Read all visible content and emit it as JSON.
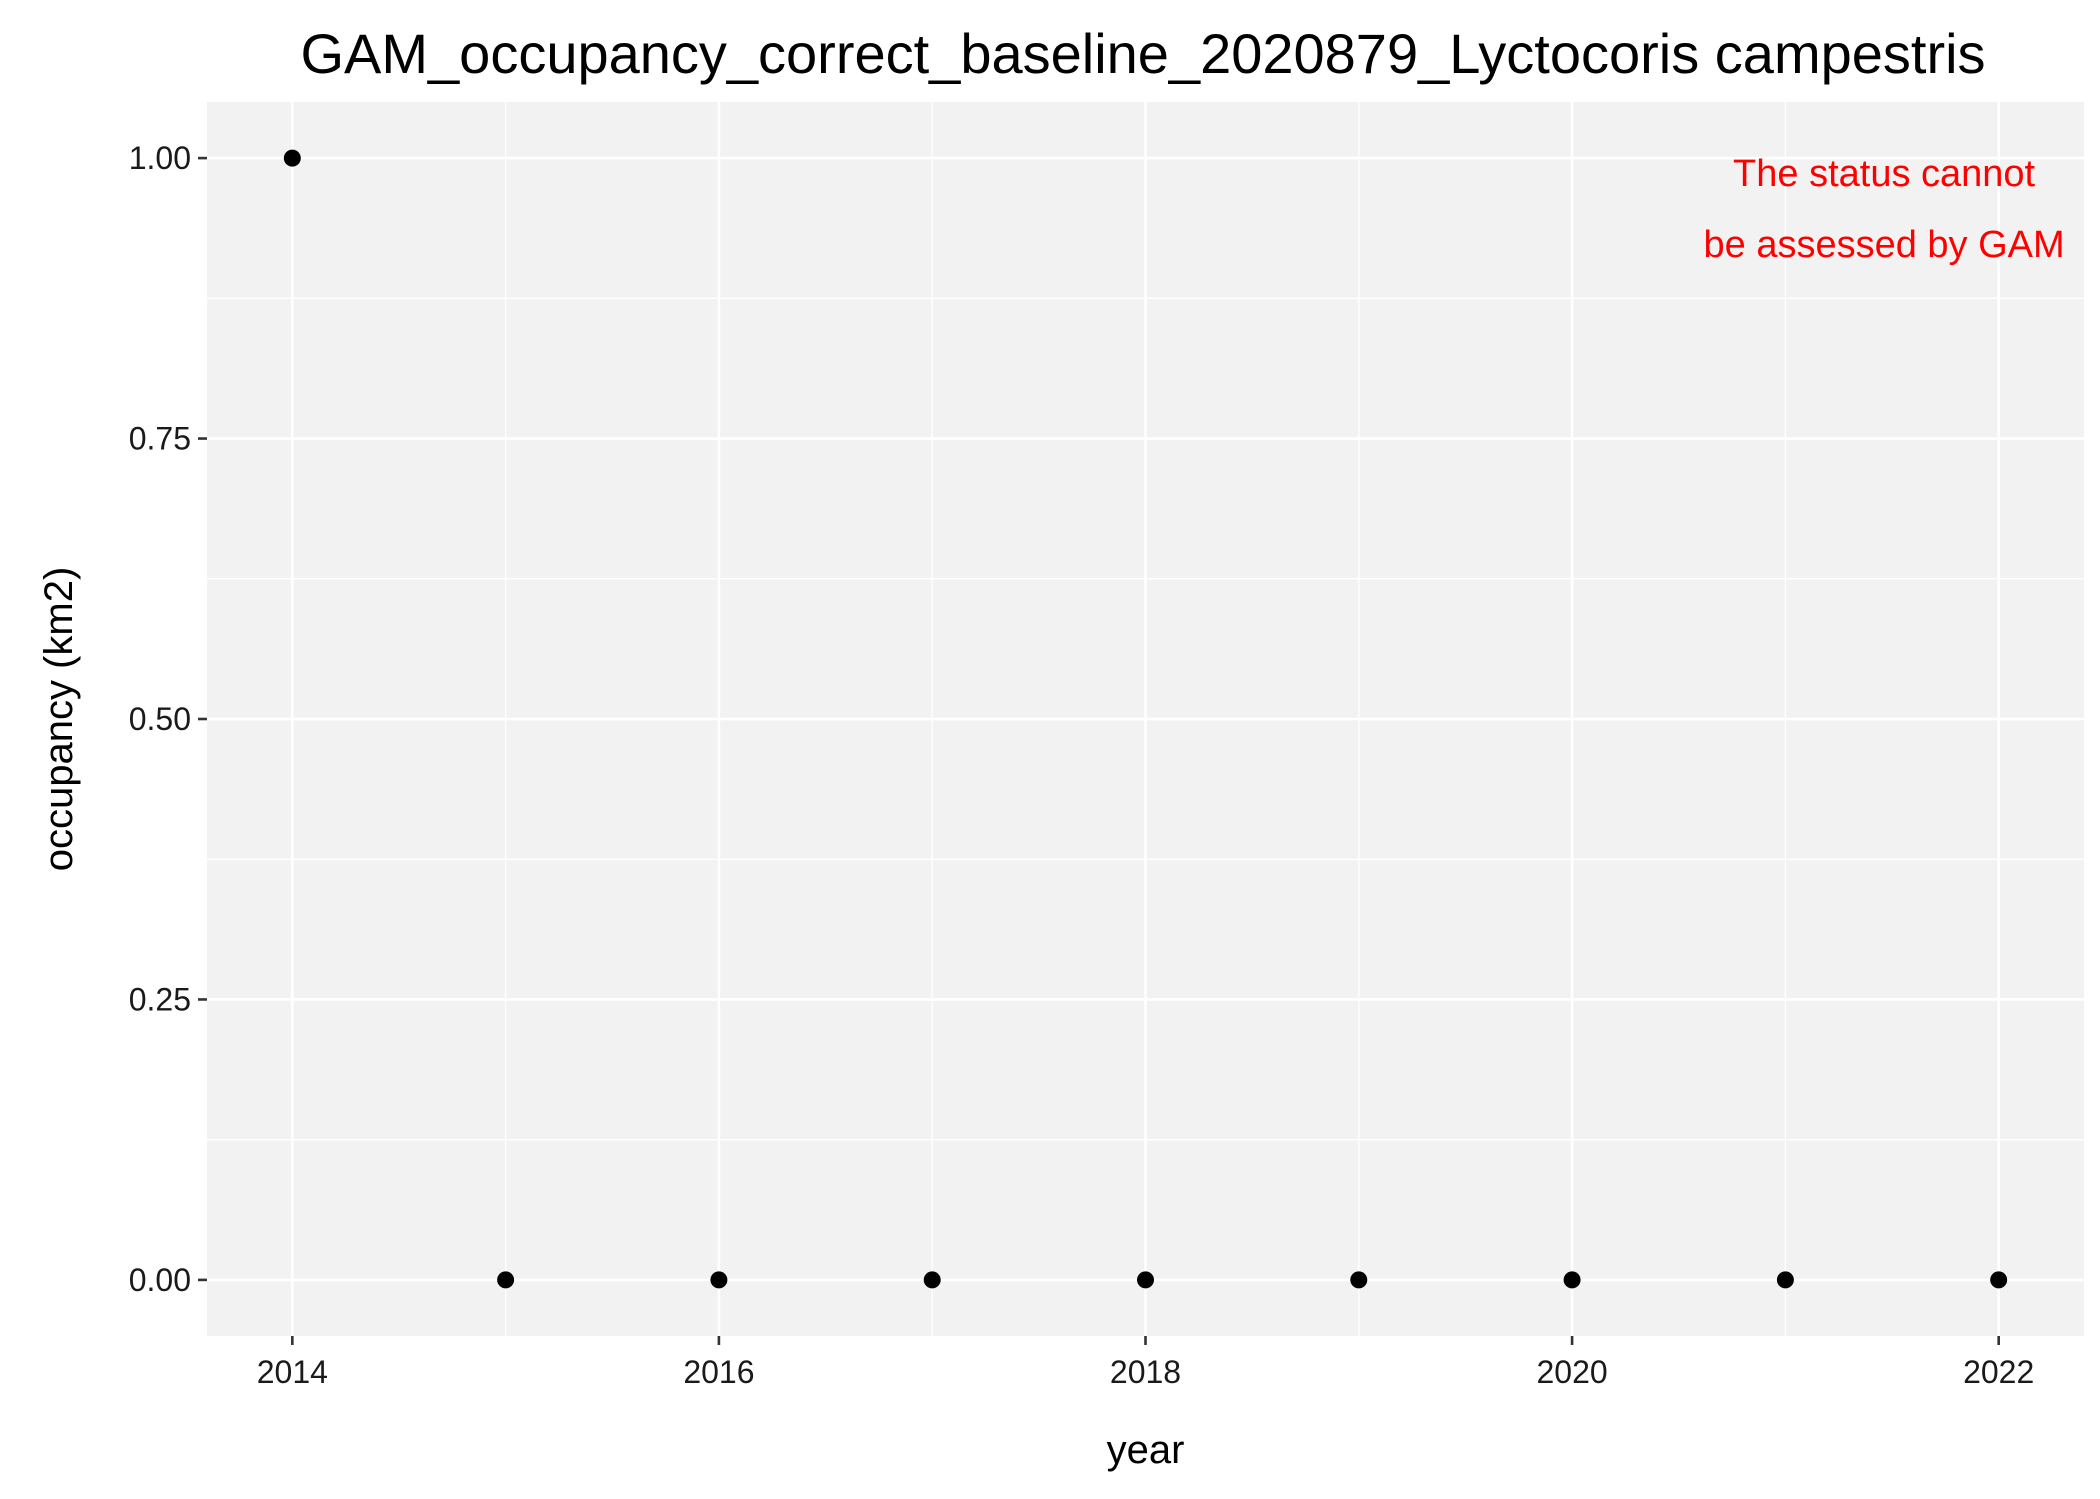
{
  "chart_data": {
    "type": "scatter",
    "title": "GAM_occupancy_correct_baseline_2020879_Lyctocoris campestris",
    "xlabel": "year",
    "ylabel": "occupancy (km2)",
    "x_ticks": [
      "2014",
      "2016",
      "2018",
      "2020",
      "2022"
    ],
    "y_ticks": [
      "0.00",
      "0.25",
      "0.50",
      "0.75",
      "1.00"
    ],
    "xlim": [
      2013.6,
      2022.4
    ],
    "ylim": [
      -0.05,
      1.05
    ],
    "grid": true,
    "x": [
      2014,
      2015,
      2016,
      2017,
      2018,
      2019,
      2020,
      2021,
      2022
    ],
    "y": [
      1.0,
      0.0,
      0.0,
      0.0,
      0.0,
      0.0,
      0.0,
      0.0,
      0.0
    ],
    "annotation": {
      "lines": [
        "The status cannot",
        "be assessed by GAM"
      ],
      "color": "#ff0000"
    },
    "colors": {
      "panel_background": "#f2f2f2",
      "grid": "#ffffff",
      "points": "#000000"
    }
  }
}
